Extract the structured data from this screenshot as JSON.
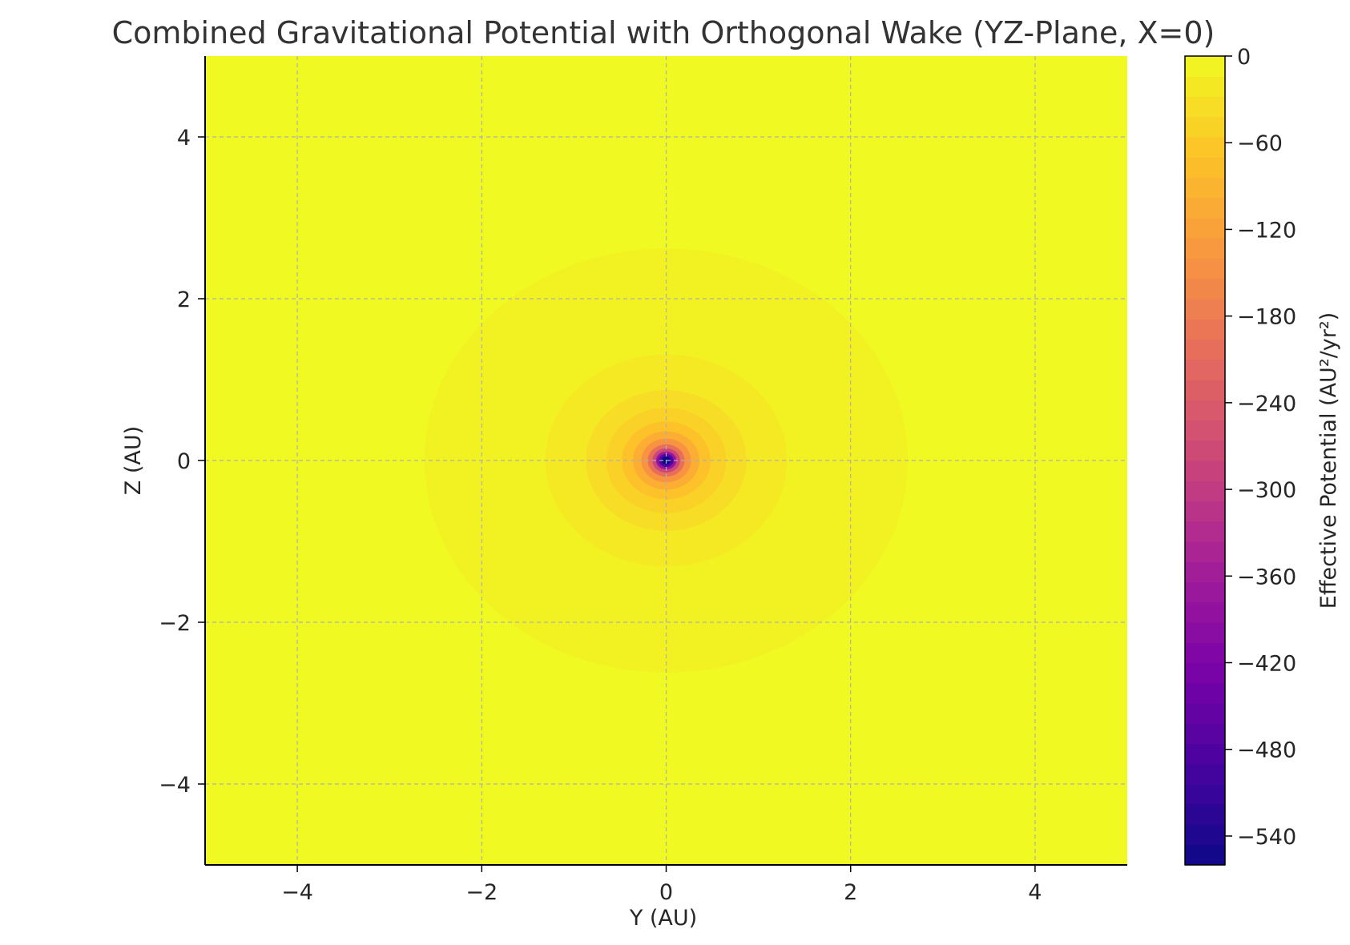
{
  "chart_data": {
    "type": "heatmap",
    "title": "Combined Gravitational Potential with Orthogonal Wake (YZ-Plane, X=0)",
    "xlabel": "Y (AU)",
    "ylabel": "Z (AU)",
    "xlim": [
      -5,
      5
    ],
    "ylim": [
      -5,
      5
    ],
    "xticks": [
      -4,
      -2,
      0,
      2,
      4
    ],
    "yticks": [
      -4,
      -2,
      0,
      2,
      4
    ],
    "xtick_labels": [
      "−4",
      "−2",
      "0",
      "2",
      "4"
    ],
    "ytick_labels": [
      "−4",
      "−2",
      "0",
      "2",
      "4"
    ],
    "grid": true,
    "colormap": "plasma",
    "field": {
      "center": [
        0,
        0
      ],
      "contours": [
        {
          "radius": 2.62,
          "level": -10
        },
        {
          "radius": 1.31,
          "level": -20
        },
        {
          "radius": 0.87,
          "level": -35
        },
        {
          "radius": 0.65,
          "level": -50
        },
        {
          "radius": 0.48,
          "level": -70
        },
        {
          "radius": 0.36,
          "level": -100
        },
        {
          "radius": 0.27,
          "level": -140
        },
        {
          "radius": 0.2,
          "level": -200
        },
        {
          "radius": 0.15,
          "level": -280
        },
        {
          "radius": 0.11,
          "level": -380
        },
        {
          "radius": 0.08,
          "level": -480
        },
        {
          "radius": 0.05,
          "level": -560
        }
      ]
    },
    "colorbar": {
      "label": "Effective Potential (AU²/yr²)",
      "range": [
        -560,
        0
      ],
      "ticks": [
        0,
        -60,
        -120,
        -180,
        -240,
        -300,
        -360,
        -420,
        -480,
        -540
      ],
      "tick_labels": [
        "0",
        "−60",
        "−120",
        "−180",
        "−240",
        "−300",
        "−360",
        "−420",
        "−480",
        "−540"
      ]
    }
  }
}
